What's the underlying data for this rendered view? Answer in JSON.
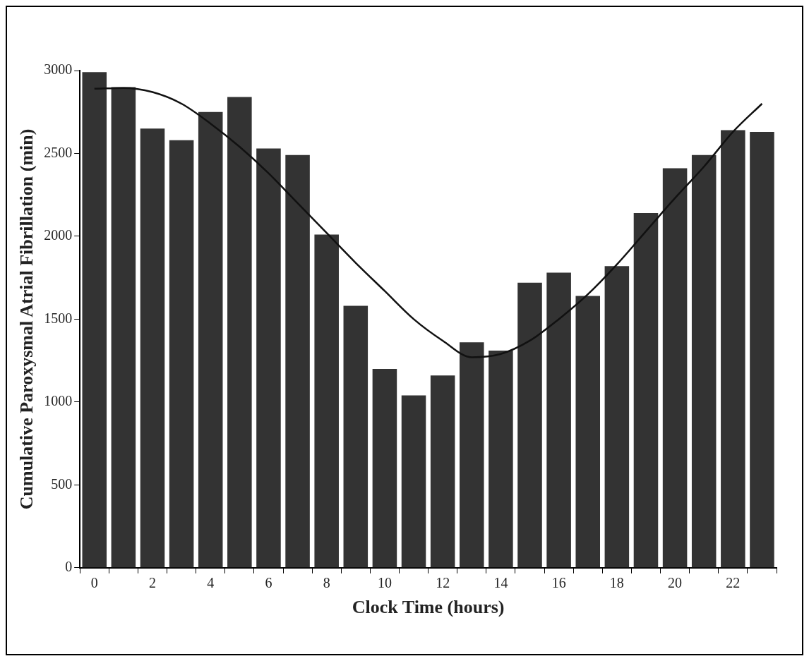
{
  "chart_data": {
    "type": "bar",
    "xlabel": "Clock Time (hours)",
    "ylabel": "Cumulative Paroxysmal Atrial Fibrillation (min)",
    "categories": [
      "0",
      null,
      "2",
      null,
      "4",
      null,
      "6",
      null,
      "8",
      null,
      "10",
      null,
      "12",
      null,
      "14",
      null,
      "16",
      null,
      "18",
      null,
      "20",
      null,
      "22",
      null
    ],
    "series": [
      {
        "color": "#333333",
        "values": [
          2990,
          2900,
          2650,
          2580,
          2750,
          2840,
          2530,
          2490,
          2010,
          1580,
          1200,
          1040,
          1160,
          1360,
          1310,
          1720,
          1780,
          1640,
          1820,
          2140,
          2410,
          2490,
          2640,
          2630
        ]
      },
      {
        "type": "line",
        "color": "#111111",
        "values": [
          2890,
          2895,
          2870,
          2800,
          2680,
          2540,
          2380,
          2200,
          2020,
          1840,
          1670,
          1500,
          1370,
          1270,
          1290,
          1370,
          1500,
          1650,
          1830,
          2030,
          2230,
          2420,
          2630,
          2800
        ]
      }
    ],
    "ylim": [
      0,
      3000
    ],
    "yticks": [
      0,
      500,
      1000,
      1500,
      2000,
      2500,
      3000
    ],
    "grid": false,
    "legend": false,
    "marker": "none",
    "line_style": "solid"
  }
}
